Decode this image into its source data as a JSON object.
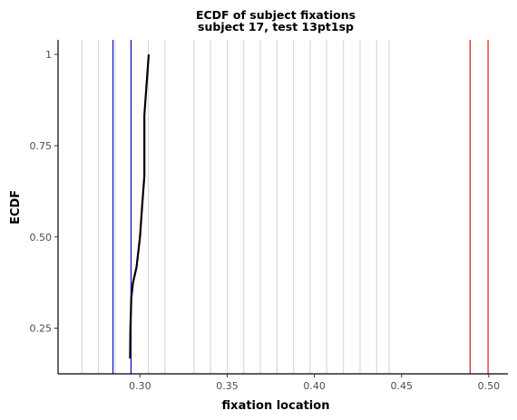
{
  "chart_data": {
    "type": "line",
    "title": "ECDF of subject fixations",
    "subtitle": "subject 17, test 13pt1sp",
    "xlabel": "fixation location",
    "ylabel": "ECDF",
    "xlim": [
      0.253,
      0.511
    ],
    "ylim": [
      0.125,
      1.04
    ],
    "x_ticks": [
      0.3,
      0.35,
      0.4,
      0.45,
      0.5
    ],
    "x_tick_labels": [
      "0.30",
      "0.35",
      "0.40",
      "0.45",
      "0.50"
    ],
    "y_ticks": [
      0.25,
      0.5,
      0.75,
      1.0
    ],
    "y_tick_labels": [
      "0.25",
      "0.50",
      "0.75",
      "1"
    ],
    "grid": false,
    "series": [
      {
        "color": "#000000",
        "x": [
          0.2943,
          0.2945,
          0.295,
          0.296,
          0.298,
          0.3,
          0.3012,
          0.3025,
          0.3025,
          0.305
        ],
        "y": [
          0.167,
          0.25,
          0.333,
          0.375,
          0.417,
          0.5,
          0.583,
          0.667,
          0.833,
          1.0
        ]
      }
    ],
    "reference_lines": [
      {
        "color": "#d3d3d3",
        "x": [
          0.2667,
          0.2762,
          0.2857,
          0.2952,
          0.3048,
          0.3143,
          0.331,
          0.3405,
          0.35,
          0.3595,
          0.369,
          0.3786,
          0.3881,
          0.3976,
          0.4071,
          0.4167,
          0.4262,
          0.4357,
          0.4429
        ]
      },
      {
        "color": "#0000cd",
        "x": [
          0.2845,
          0.2948
        ]
      },
      {
        "color": "#e00000",
        "x": [
          0.4893,
          0.4996
        ]
      }
    ]
  }
}
